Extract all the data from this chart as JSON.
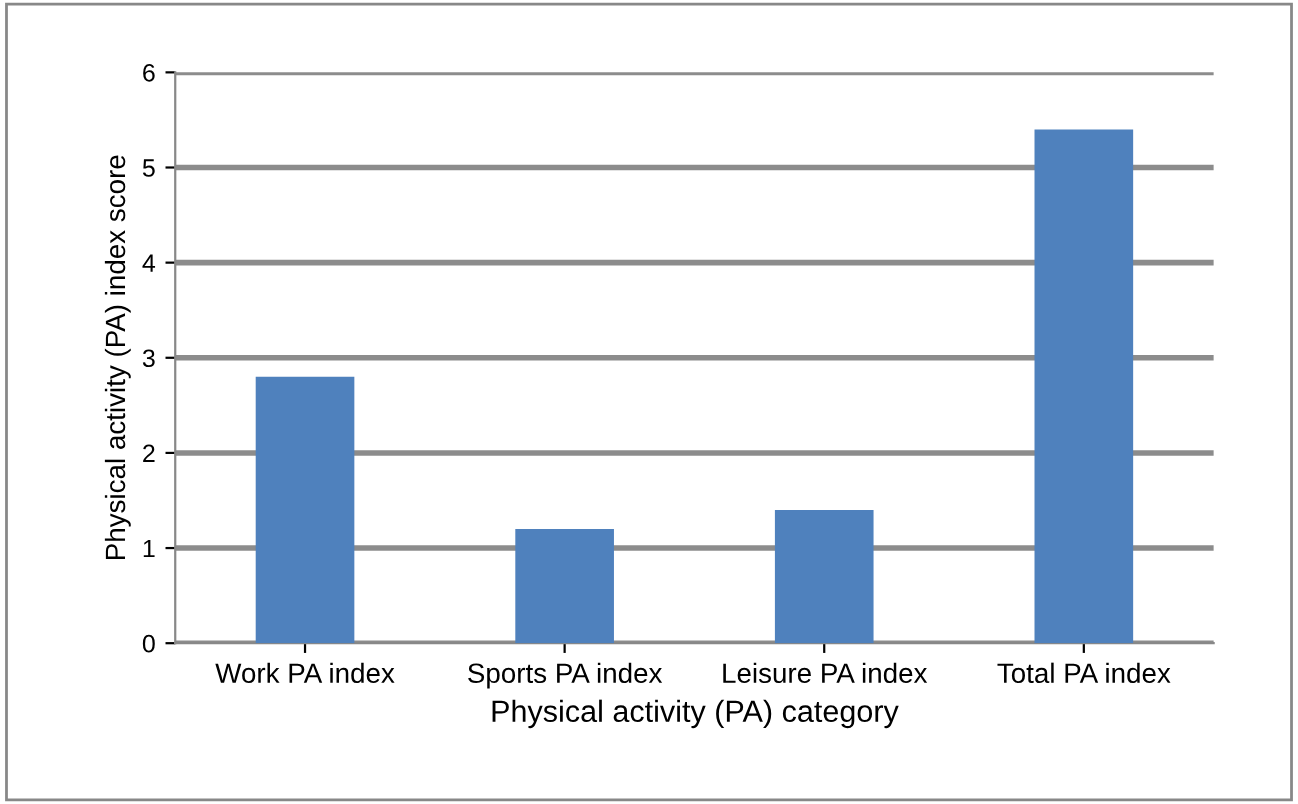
{
  "chart_data": {
    "type": "bar",
    "xlabel": "Physical activity (PA) category",
    "ylabel": "Physical activity (PA) index score",
    "categories": [
      "Work PA index",
      "Sports PA index",
      "Leisure PA index",
      "Total PA index"
    ],
    "values": [
      2.8,
      1.2,
      1.4,
      5.4
    ],
    "color": "#4f81bd",
    "ylim": [
      0,
      6
    ],
    "yticks": [
      0,
      1,
      2,
      3,
      4,
      5,
      6
    ],
    "grid": "y",
    "legend": false
  }
}
